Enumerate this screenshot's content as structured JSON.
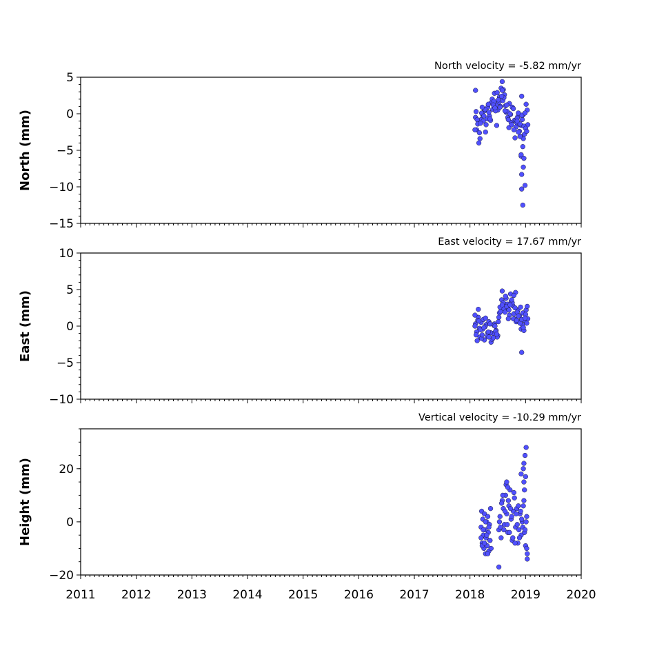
{
  "chart_data": [
    {
      "type": "scatter",
      "title": "North velocity = -5.82 mm/yr",
      "ylabel": "North (mm)",
      "xlim": [
        2011,
        2020
      ],
      "ylim": [
        -15,
        5
      ],
      "yticks": [
        5,
        0,
        -5,
        -10,
        -15
      ],
      "yticklabels": [
        "5",
        "0",
        "−5",
        "−10",
        "−15"
      ],
      "ymin_minor": 1,
      "marker_color": "#5050ff",
      "series": [
        {
          "x": [
            2018.1,
            2018.12,
            2018.15,
            2018.18,
            2018.2,
            2018.23,
            2018.26,
            2018.29,
            2018.32,
            2018.35,
            2018.38,
            2018.41,
            2018.44,
            2018.47,
            2018.5,
            2018.53,
            2018.56,
            2018.59,
            2018.62,
            2018.65,
            2018.68,
            2018.71,
            2018.74,
            2018.77,
            2018.8,
            2018.83,
            2018.86,
            2018.89,
            2018.92,
            2018.95,
            2018.98,
            2019.01,
            2019.04,
            2018.11,
            2018.14,
            2018.17,
            2018.21,
            2018.24,
            2018.27,
            2018.31,
            2018.34,
            2018.37,
            2018.4,
            2018.43,
            2018.46,
            2018.49,
            2018.52,
            2018.55,
            2018.58,
            2018.61,
            2018.64,
            2018.67,
            2018.7,
            2018.73,
            2018.76,
            2018.79,
            2018.82,
            2018.85,
            2018.88,
            2018.91,
            2018.94,
            2018.97,
            2019.0,
            2019.03,
            2018.09,
            2018.13,
            2018.16,
            2018.19,
            2018.22,
            2018.25,
            2018.28,
            2018.33,
            2018.36,
            2018.42,
            2018.45,
            2018.48,
            2018.51,
            2018.54,
            2018.57,
            2018.6,
            2018.63,
            2018.66,
            2018.69,
            2018.72,
            2018.75,
            2018.78,
            2018.81,
            2018.84,
            2018.87,
            2018.9,
            2018.93,
            2018.96,
            2018.99,
            2019.02,
            2018.58,
            2018.87,
            2018.1,
            2018.93,
            2018.92,
            2018.95,
            2018.97,
            2018.96,
            2018.93,
            2018.99,
            2018.93,
            2018.95,
            2018.92,
            2018.85,
            2018.9
          ],
          "y": [
            -0.5,
            -2.2,
            -1.0,
            -3.4,
            -0.8,
            -0.2,
            0.4,
            -1.5,
            0.9,
            -0.3,
            1.5,
            0.6,
            2.8,
            1.2,
            0.5,
            2.3,
            3.5,
            1.8,
            2.6,
            0.2,
            -0.5,
            1.4,
            -1.2,
            0.8,
            -0.9,
            -1.8,
            -0.4,
            -2.4,
            -1.6,
            -0.2,
            -2.8,
            1.3,
            -1.5,
            0.3,
            -1.4,
            -2.6,
            0.1,
            -1.0,
            0.6,
            -0.7,
            0.2,
            -0.9,
            2.0,
            1.7,
            0.4,
            2.9,
            1.6,
            1.0,
            4.4,
            2.2,
            1.1,
            0.3,
            -1.9,
            -0.1,
            0.9,
            -2.2,
            -1.0,
            -0.6,
            -1.4,
            -3.1,
            -0.8,
            -1.7,
            -2.0,
            0.5,
            -2.2,
            -0.8,
            -4.0,
            -1.3,
            0.9,
            -0.3,
            -2.5,
            1.3,
            -0.7,
            1.2,
            0.8,
            -1.6,
            1.9,
            0.9,
            2.4,
            3.3,
            0.4,
            1.2,
            -0.8,
            0.0,
            -1.5,
            0.7,
            -3.3,
            -1.2,
            -2.5,
            -1.4,
            -0.2,
            -3.4,
            0.1,
            -2.4,
            3.2,
            0.1,
            3.2,
            2.4,
            -5.8,
            -4.5,
            -6.1,
            -7.3,
            -8.3,
            -9.8,
            -10.3,
            -12.5,
            -5.6,
            -1.0,
            -3.1
          ]
        }
      ]
    },
    {
      "type": "scatter",
      "title": "East velocity = 17.67 mm/yr",
      "ylabel": "East (mm)",
      "xlim": [
        2011,
        2020
      ],
      "ylim": [
        -10,
        10
      ],
      "yticks": [
        10,
        5,
        0,
        -5,
        -10
      ],
      "yticklabels": [
        "10",
        "5",
        "0",
        "−5",
        "−10"
      ],
      "ymin_minor": 1,
      "marker_color": "#5050ff",
      "series": [
        {
          "x": [
            2018.1,
            2018.12,
            2018.15,
            2018.18,
            2018.2,
            2018.23,
            2018.26,
            2018.29,
            2018.32,
            2018.35,
            2018.38,
            2018.41,
            2018.44,
            2018.47,
            2018.5,
            2018.53,
            2018.56,
            2018.59,
            2018.62,
            2018.65,
            2018.68,
            2018.71,
            2018.74,
            2018.77,
            2018.8,
            2018.83,
            2018.86,
            2018.89,
            2018.92,
            2018.95,
            2018.98,
            2019.01,
            2019.04,
            2018.11,
            2018.14,
            2018.17,
            2018.21,
            2018.24,
            2018.27,
            2018.31,
            2018.34,
            2018.37,
            2018.4,
            2018.43,
            2018.46,
            2018.49,
            2018.52,
            2018.55,
            2018.58,
            2018.61,
            2018.64,
            2018.67,
            2018.7,
            2018.73,
            2018.76,
            2018.79,
            2018.82,
            2018.85,
            2018.88,
            2018.91,
            2018.94,
            2018.97,
            2019.0,
            2019.03,
            2018.09,
            2018.13,
            2018.16,
            2018.19,
            2018.22,
            2018.25,
            2018.28,
            2018.33,
            2018.36,
            2018.42,
            2018.45,
            2018.48,
            2018.51,
            2018.54,
            2018.57,
            2018.6,
            2018.63,
            2018.66,
            2018.69,
            2018.72,
            2018.75,
            2018.78,
            2018.81,
            2018.84,
            2018.87,
            2018.9,
            2018.93,
            2018.96,
            2018.99,
            2019.02,
            2018.58,
            2018.93,
            2018.15,
            2018.09,
            2018.34,
            2018.79
          ],
          "y": [
            0.3,
            -0.8,
            1.2,
            -1.5,
            0.5,
            -0.4,
            -1.9,
            0.2,
            -0.9,
            0.4,
            -2.2,
            -1.0,
            0.3,
            -0.6,
            -1.3,
            1.8,
            2.5,
            3.1,
            2.2,
            3.8,
            2.6,
            1.5,
            3.4,
            2.8,
            1.0,
            0.6,
            2.2,
            1.4,
            -0.4,
            1.8,
            0.8,
            2.2,
            1.0,
            -1.2,
            0.8,
            -0.3,
            -1.7,
            0.9,
            -0.1,
            -1.4,
            0.6,
            -0.9,
            -1.8,
            0.1,
            -0.7,
            -1.5,
            1.2,
            2.0,
            4.8,
            2.4,
            4.1,
            3.0,
            2.2,
            4.4,
            3.2,
            1.7,
            4.6,
            1.9,
            0.6,
            2.6,
            0.2,
            -0.6,
            1.6,
            2.7,
            1.5,
            -2.0,
            0.7,
            -0.5,
            -1.2,
            -0.2,
            1.1,
            -0.8,
            0.3,
            -1.6,
            0.0,
            -1.1,
            0.6,
            2.6,
            3.6,
            3.2,
            1.9,
            2.7,
            1.0,
            2.9,
            3.6,
            1.0,
            2.5,
            0.8,
            1.4,
            0.4,
            0.9,
            -0.2,
            1.1,
            0.4,
            2.9,
            -3.6,
            2.3,
            0.0,
            -1.5,
            4.2
          ]
        }
      ]
    },
    {
      "type": "scatter",
      "title": "Vertical velocity = -10.29 mm/yr",
      "ylabel": "Height (mm)",
      "xlim": [
        2011,
        2020
      ],
      "ylim": [
        -20,
        35
      ],
      "yticks": [
        20,
        0,
        -20
      ],
      "yticklabels": [
        "20",
        "0",
        "−20"
      ],
      "ymin_minor": 5,
      "marker_color": "#5050ff",
      "series": [
        {
          "x": [
            2018.2,
            2018.21,
            2018.22,
            2018.23,
            2018.24,
            2018.25,
            2018.26,
            2018.27,
            2018.28,
            2018.29,
            2018.3,
            2018.31,
            2018.32,
            2018.33,
            2018.34,
            2018.35,
            2018.36,
            2018.37,
            2018.2,
            2018.22,
            2018.24,
            2018.26,
            2018.28,
            2018.3,
            2018.32,
            2018.34,
            2018.36,
            2018.38,
            2018.52,
            2018.54,
            2018.56,
            2018.58,
            2018.6,
            2018.62,
            2018.64,
            2018.66,
            2018.68,
            2018.7,
            2018.72,
            2018.74,
            2018.76,
            2018.78,
            2018.8,
            2018.82,
            2018.84,
            2018.86,
            2018.88,
            2018.9,
            2018.92,
            2018.94,
            2018.96,
            2018.98,
            2019.0,
            2019.02,
            2018.53,
            2018.55,
            2018.57,
            2018.59,
            2018.61,
            2018.63,
            2018.65,
            2018.67,
            2018.69,
            2018.71,
            2018.73,
            2018.75,
            2018.77,
            2018.79,
            2018.81,
            2018.83,
            2018.85,
            2018.87,
            2018.89,
            2018.91,
            2018.93,
            2018.95,
            2018.97,
            2018.99,
            2019.01,
            2019.03,
            2018.92,
            2018.97,
            2018.98,
            2018.99,
            2018.97,
            2018.96,
            2019.0,
            2019.01,
            2018.52,
            2018.66,
            2018.68,
            2019.03,
            2019.02
          ],
          "y": [
            -2,
            4,
            -8,
            1,
            -5,
            -10,
            3,
            -3,
            -12,
            -6,
            0,
            -9,
            2,
            -4,
            -11,
            -1,
            -7,
            5,
            -6,
            -9,
            -3,
            -8,
            0,
            -5,
            -12,
            -2,
            -7,
            -10,
            -3,
            2,
            -6,
            8,
            5,
            -1,
            10,
            3,
            -4,
            6,
            12,
            1,
            -7,
            4,
            9,
            -2,
            5,
            -8,
            -3,
            3,
            -5,
            0,
            6,
            -4,
            -9,
            2,
            0,
            -2,
            7,
            10,
            -3,
            4,
            14,
            -1,
            8,
            -4,
            5,
            2,
            -6,
            11,
            -8,
            3,
            -1,
            6,
            -6,
            4,
            1,
            -2,
            8,
            -3,
            0,
            -12,
            18,
            22,
            12,
            25,
            15,
            20,
            17,
            28,
            -17,
            15,
            13,
            -14,
            -10
          ]
        }
      ]
    }
  ],
  "xaxis": {
    "ticks": [
      2011,
      2012,
      2013,
      2014,
      2015,
      2016,
      2017,
      2018,
      2019,
      2020
    ],
    "ticklabels": [
      "2011",
      "2012",
      "2013",
      "2014",
      "2015",
      "2016",
      "2017",
      "2018",
      "2019",
      "2020"
    ],
    "minor_per_year": 12
  }
}
